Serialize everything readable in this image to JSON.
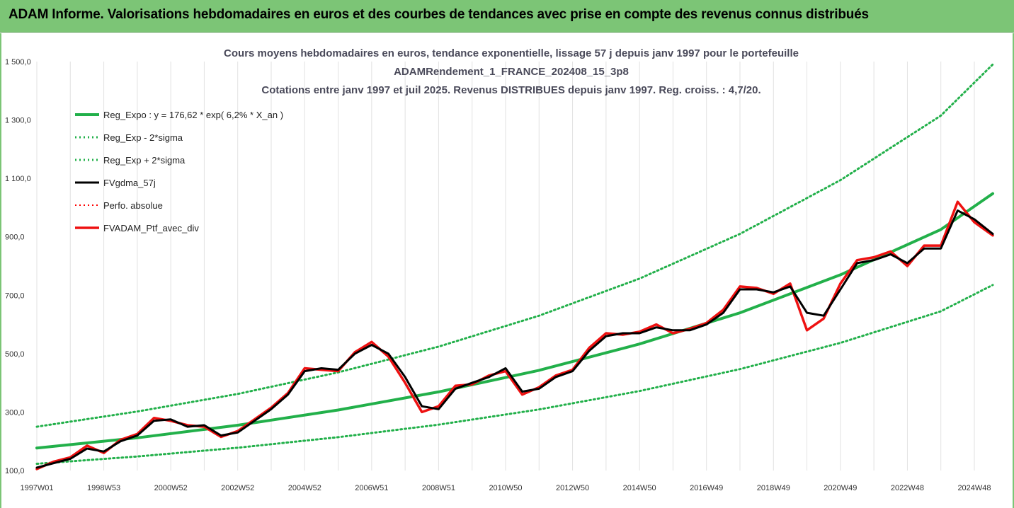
{
  "banner": {
    "title": "ADAM Informe. Valorisations hebdomadaires en euros et des courbes de tendances avec prise en compte des revenus connus distribués"
  },
  "chart_data": {
    "type": "line",
    "title_lines": [
      "Cours moyens hebdomadaires  en euros, tendance exponentielle, lissage 57 j depuis janv 1997 pour le portefeuille",
      "ADAMRendement_1_FRANCE_202408_15_3p8",
      "Cotations entre janv 1997 et juil 2025. Revenus DISTRIBUES depuis janv 1997. Reg. croiss. : 4,7/20."
    ],
    "x_tick_labels": [
      "1997W01",
      "1998W53",
      "2000W52",
      "2002W52",
      "2004W52",
      "2006W51",
      "2008W51",
      "2010W50",
      "2012W50",
      "2014W50",
      "2016W49",
      "2018W49",
      "2020W49",
      "2022W48",
      "2024W48"
    ],
    "x_range": [
      1997.0,
      2025.55
    ],
    "ylim": [
      100,
      1500
    ],
    "y_ticks": [
      100,
      300,
      500,
      700,
      900,
      1100,
      1300,
      1500
    ],
    "y_tick_labels": [
      "100,0",
      "300,0",
      "500,0",
      "700,0",
      "900,0",
      "1 100,0",
      "1 300,0",
      "1 500,0"
    ],
    "grid": "vertical",
    "legend_position": "top-left",
    "colors": {
      "trend": "#22b04a",
      "sigma": "#22b04a",
      "smooth": "#000000",
      "perf": "#ff0000",
      "portfolio": "#ee1111"
    },
    "series": [
      {
        "name": "Reg_Expo : y = 176,62 * exp( 6,2% *  X_an )",
        "style": "solid",
        "x": [
          1997.0,
          2000.0,
          2003.0,
          2006.0,
          2009.0,
          2012.0,
          2015.0,
          2018.0,
          2021.0,
          2024.0,
          2025.55
        ],
        "y": [
          177,
          212,
          255,
          307,
          369,
          443,
          533,
          640,
          770,
          925,
          1048
        ]
      },
      {
        "name": "Reg_Exp - 2*sigma",
        "style": "dotted",
        "x": [
          1997.0,
          2000.0,
          2003.0,
          2006.0,
          2009.0,
          2012.0,
          2015.0,
          2018.0,
          2021.0,
          2024.0,
          2025.55
        ],
        "y": [
          123,
          148,
          178,
          214,
          257,
          309,
          372,
          447,
          537,
          645,
          735
        ]
      },
      {
        "name": "Reg_Exp + 2*sigma",
        "style": "dotted",
        "x": [
          1997.0,
          2000.0,
          2003.0,
          2006.0,
          2009.0,
          2012.0,
          2015.0,
          2018.0,
          2021.0,
          2024.0,
          2025.55
        ],
        "y": [
          250,
          302,
          362,
          436,
          524,
          630,
          757,
          910,
          1094,
          1315,
          1490
        ]
      },
      {
        "name": "FVgdma_57j",
        "style": "solid",
        "x": [
          1997.0,
          1997.5,
          1998.0,
          1998.5,
          1999.0,
          1999.5,
          2000.0,
          2000.5,
          2001.0,
          2001.5,
          2002.0,
          2002.5,
          2003.0,
          2003.5,
          2004.0,
          2004.5,
          2005.0,
          2005.5,
          2006.0,
          2006.5,
          2007.0,
          2007.5,
          2008.0,
          2008.5,
          2009.0,
          2009.5,
          2010.0,
          2010.5,
          2011.0,
          2011.5,
          2012.0,
          2012.5,
          2013.0,
          2013.5,
          2014.0,
          2014.5,
          2015.0,
          2015.5,
          2016.0,
          2016.5,
          2017.0,
          2017.5,
          2018.0,
          2018.5,
          2019.0,
          2019.5,
          2020.0,
          2020.5,
          2021.0,
          2021.5,
          2022.0,
          2022.5,
          2023.0,
          2023.5,
          2024.0,
          2024.5,
          2025.0,
          2025.55
        ],
        "y": [
          110,
          125,
          140,
          175,
          165,
          200,
          220,
          270,
          275,
          250,
          255,
          220,
          230,
          270,
          310,
          360,
          440,
          450,
          445,
          500,
          530,
          500,
          420,
          320,
          310,
          380,
          400,
          420,
          450,
          370,
          380,
          420,
          440,
          510,
          560,
          570,
          570,
          590,
          580,
          580,
          600,
          640,
          720,
          720,
          710,
          730,
          640,
          630,
          720,
          810,
          820,
          840,
          810,
          860,
          860,
          990,
          960,
          910
        ]
      },
      {
        "name": "Perfo. absolue",
        "style": "dotted",
        "x": [
          1997.0,
          1997.5,
          1998.0,
          1998.5,
          1999.0,
          1999.5,
          2000.0,
          2000.5,
          2001.0,
          2001.5,
          2002.0,
          2002.5,
          2003.0,
          2003.5,
          2004.0,
          2004.5,
          2005.0,
          2005.5,
          2006.0,
          2006.5,
          2007.0,
          2007.5,
          2008.0,
          2008.5,
          2009.0,
          2009.5,
          2010.0,
          2010.5,
          2011.0,
          2011.5,
          2012.0,
          2012.5,
          2013.0,
          2013.5,
          2014.0,
          2014.5,
          2015.0,
          2015.5,
          2016.0,
          2016.5,
          2017.0,
          2017.5,
          2018.0,
          2018.5,
          2019.0,
          2019.5,
          2020.0,
          2020.5,
          2021.0,
          2021.5,
          2022.0,
          2022.5,
          2023.0,
          2023.5,
          2024.0,
          2024.5,
          2025.0,
          2025.55
        ],
        "y": [
          105,
          130,
          145,
          185,
          160,
          205,
          225,
          280,
          270,
          255,
          250,
          215,
          235,
          275,
          315,
          365,
          450,
          445,
          440,
          505,
          540,
          490,
          400,
          300,
          320,
          390,
          395,
          425,
          440,
          360,
          385,
          425,
          445,
          520,
          570,
          565,
          575,
          600,
          570,
          585,
          605,
          650,
          730,
          725,
          705,
          740,
          580,
          620,
          740,
          820,
          830,
          850,
          800,
          870,
          870,
          1020,
          950,
          905
        ]
      },
      {
        "name": "FVADAM_Ptf_avec_div",
        "style": "solid",
        "x": [
          1997.0,
          1997.5,
          1998.0,
          1998.5,
          1999.0,
          1999.5,
          2000.0,
          2000.5,
          2001.0,
          2001.5,
          2002.0,
          2002.5,
          2003.0,
          2003.5,
          2004.0,
          2004.5,
          2005.0,
          2005.5,
          2006.0,
          2006.5,
          2007.0,
          2007.5,
          2008.0,
          2008.5,
          2009.0,
          2009.5,
          2010.0,
          2010.5,
          2011.0,
          2011.5,
          2012.0,
          2012.5,
          2013.0,
          2013.5,
          2014.0,
          2014.5,
          2015.0,
          2015.5,
          2016.0,
          2016.5,
          2017.0,
          2017.5,
          2018.0,
          2018.5,
          2019.0,
          2019.5,
          2020.0,
          2020.5,
          2021.0,
          2021.5,
          2022.0,
          2022.5,
          2023.0,
          2023.5,
          2024.0,
          2024.5,
          2025.0,
          2025.55
        ],
        "y": [
          105,
          130,
          145,
          185,
          160,
          205,
          225,
          280,
          270,
          255,
          250,
          215,
          235,
          275,
          315,
          365,
          450,
          445,
          440,
          505,
          540,
          490,
          400,
          300,
          320,
          390,
          395,
          425,
          440,
          360,
          385,
          425,
          445,
          520,
          570,
          565,
          575,
          600,
          570,
          585,
          605,
          650,
          730,
          725,
          705,
          740,
          580,
          620,
          740,
          820,
          830,
          850,
          800,
          870,
          870,
          1020,
          950,
          905
        ]
      }
    ]
  }
}
